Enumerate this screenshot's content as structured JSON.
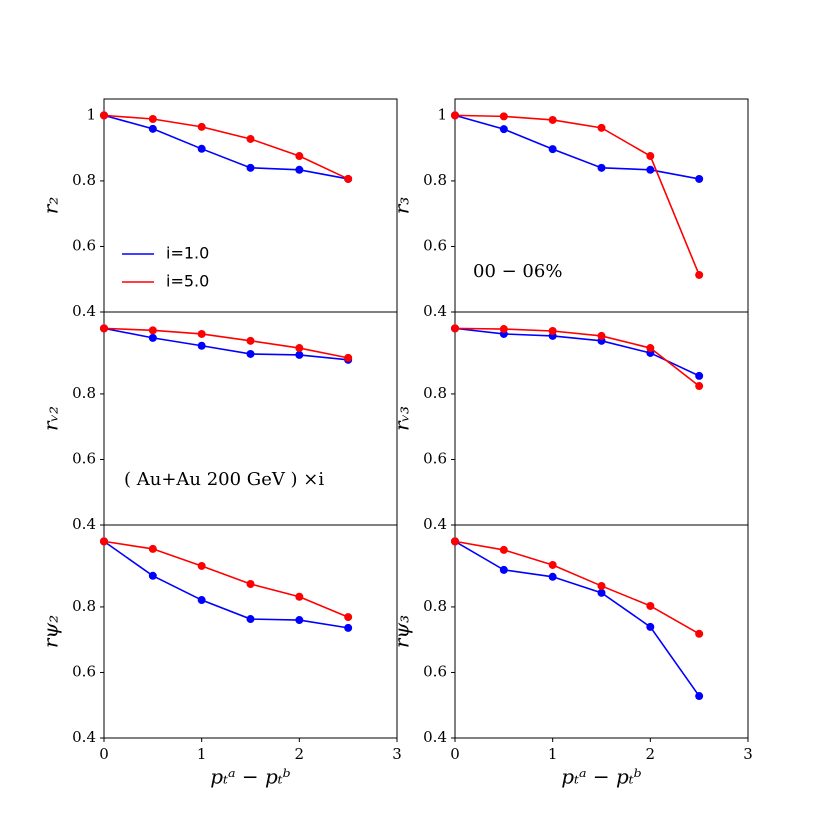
{
  "chart_data": [
    {
      "type": "line",
      "ylabel": "r₂",
      "x": [
        0,
        0.5,
        1,
        1.5,
        2,
        2.5
      ],
      "xlim": [
        0,
        3
      ],
      "ylim": [
        0.4,
        1.05
      ],
      "yticks": [
        0.4,
        0.6,
        0.8,
        1.0
      ],
      "legend": "lower left",
      "series": [
        {
          "name": "i=1.0",
          "color": "#0000ff",
          "values": [
            1.0,
            0.959,
            0.898,
            0.84,
            0.834,
            0.806
          ]
        },
        {
          "name": "i=5.0",
          "color": "#ff0000",
          "values": [
            1.0,
            0.989,
            0.965,
            0.928,
            0.876,
            0.806
          ]
        }
      ]
    },
    {
      "type": "line",
      "ylabel": "r₃",
      "annotation": "00 − 06%",
      "x": [
        0,
        0.5,
        1,
        1.5,
        2,
        2.5
      ],
      "xlim": [
        0,
        3
      ],
      "ylim": [
        0.4,
        1.05
      ],
      "yticks": [
        0.4,
        0.6,
        0.8,
        1.0
      ],
      "series": [
        {
          "color": "#0000ff",
          "values": [
            1.0,
            0.958,
            0.897,
            0.84,
            0.834,
            0.806
          ]
        },
        {
          "color": "#ff0000",
          "values": [
            1.0,
            0.997,
            0.986,
            0.962,
            0.876,
            0.513
          ]
        }
      ]
    },
    {
      "type": "line",
      "ylabel": "rᵥ₂",
      "annotation": "( Au+Au 200 GeV ) ×i",
      "x": [
        0,
        0.5,
        1,
        1.5,
        2,
        2.5
      ],
      "xlim": [
        0,
        3
      ],
      "ylim": [
        0.4,
        1.05
      ],
      "yticks": [
        0.4,
        0.6,
        0.8
      ],
      "series": [
        {
          "color": "#0000ff",
          "values": [
            1.0,
            0.971,
            0.947,
            0.922,
            0.919,
            0.904
          ]
        },
        {
          "color": "#ff0000",
          "values": [
            1.0,
            0.994,
            0.983,
            0.962,
            0.94,
            0.91
          ]
        }
      ]
    },
    {
      "type": "line",
      "ylabel": "rᵥ₃",
      "x": [
        0,
        0.5,
        1,
        1.5,
        2,
        2.5
      ],
      "xlim": [
        0,
        3
      ],
      "ylim": [
        0.4,
        1.05
      ],
      "yticks": [
        0.4,
        0.6,
        0.8
      ],
      "series": [
        {
          "color": "#0000ff",
          "values": [
            1.0,
            0.983,
            0.977,
            0.962,
            0.925,
            0.855
          ]
        },
        {
          "color": "#ff0000",
          "values": [
            1.0,
            0.998,
            0.992,
            0.977,
            0.94,
            0.824
          ]
        }
      ]
    },
    {
      "type": "line",
      "ylabel": "rψ₂",
      "xlabel": "pₜᵃ − pₜᵇ",
      "x": [
        0,
        0.5,
        1,
        1.5,
        2,
        2.5
      ],
      "xlim": [
        0,
        3
      ],
      "xticks": [
        0,
        1,
        2,
        3
      ],
      "ylim": [
        0.4,
        1.05
      ],
      "yticks": [
        0.4,
        0.6,
        0.8
      ],
      "series": [
        {
          "color": "#0000ff",
          "values": [
            1.0,
            0.895,
            0.821,
            0.763,
            0.76,
            0.736
          ]
        },
        {
          "color": "#ff0000",
          "values": [
            1.0,
            0.977,
            0.925,
            0.87,
            0.831,
            0.769
          ]
        }
      ]
    },
    {
      "type": "line",
      "ylabel": "rψ₃",
      "xlabel": "pₜᵃ − pₜᵇ",
      "x": [
        0,
        0.5,
        1,
        1.5,
        2,
        2.5
      ],
      "xlim": [
        0,
        3
      ],
      "xticks": [
        0,
        1,
        2,
        3
      ],
      "ylim": [
        0.4,
        1.05
      ],
      "yticks": [
        0.4,
        0.6,
        0.8
      ],
      "series": [
        {
          "color": "#0000ff",
          "values": [
            1.0,
            0.913,
            0.892,
            0.843,
            0.739,
            0.528
          ]
        },
        {
          "color": "#ff0000",
          "values": [
            1.0,
            0.974,
            0.928,
            0.864,
            0.803,
            0.718
          ]
        }
      ]
    }
  ]
}
